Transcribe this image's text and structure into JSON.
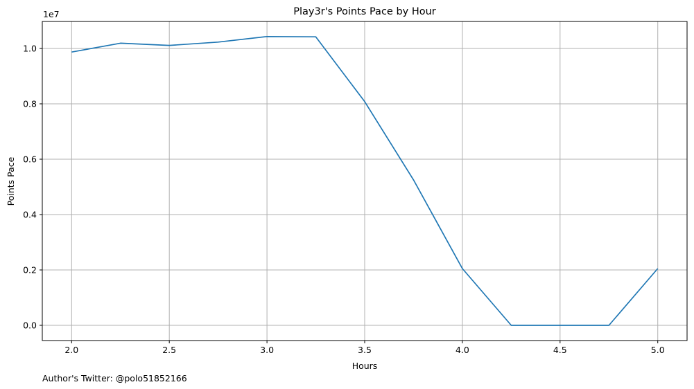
{
  "chart_data": {
    "type": "line",
    "title": "Play3r's Points Pace by Hour",
    "xlabel": "Hours",
    "ylabel": "Points Pace",
    "y_offset_label": "1e7",
    "xlim": [
      1.85,
      5.15
    ],
    "ylim": [
      -0.055,
      1.0975
    ],
    "x_ticks": [
      2.0,
      2.5,
      3.0,
      3.5,
      4.0,
      4.5,
      5.0
    ],
    "x_tick_labels": [
      "2.0",
      "2.5",
      "3.0",
      "3.5",
      "4.0",
      "4.5",
      "5.0"
    ],
    "y_ticks": [
      0.0,
      0.2,
      0.4,
      0.6,
      0.8,
      1.0
    ],
    "y_tick_labels": [
      "0.0",
      "0.2",
      "0.4",
      "0.6",
      "0.8",
      "1.0"
    ],
    "grid": true,
    "line_color": "#1f77b4",
    "grid_color": "#b0b0b0",
    "series": [
      {
        "x": [
          2.0,
          2.25,
          2.5,
          2.75,
          3.0,
          3.25,
          3.5,
          3.75,
          4.0,
          4.25,
          4.5,
          4.75,
          5.0
        ],
        "values": [
          0.987,
          1.019,
          1.011,
          1.023,
          1.043,
          1.042,
          0.808,
          0.525,
          0.205,
          0.0,
          0.0,
          0.0,
          0.205
        ]
      }
    ]
  },
  "footer": {
    "text": "Author's Twitter: @polo51852166"
  }
}
